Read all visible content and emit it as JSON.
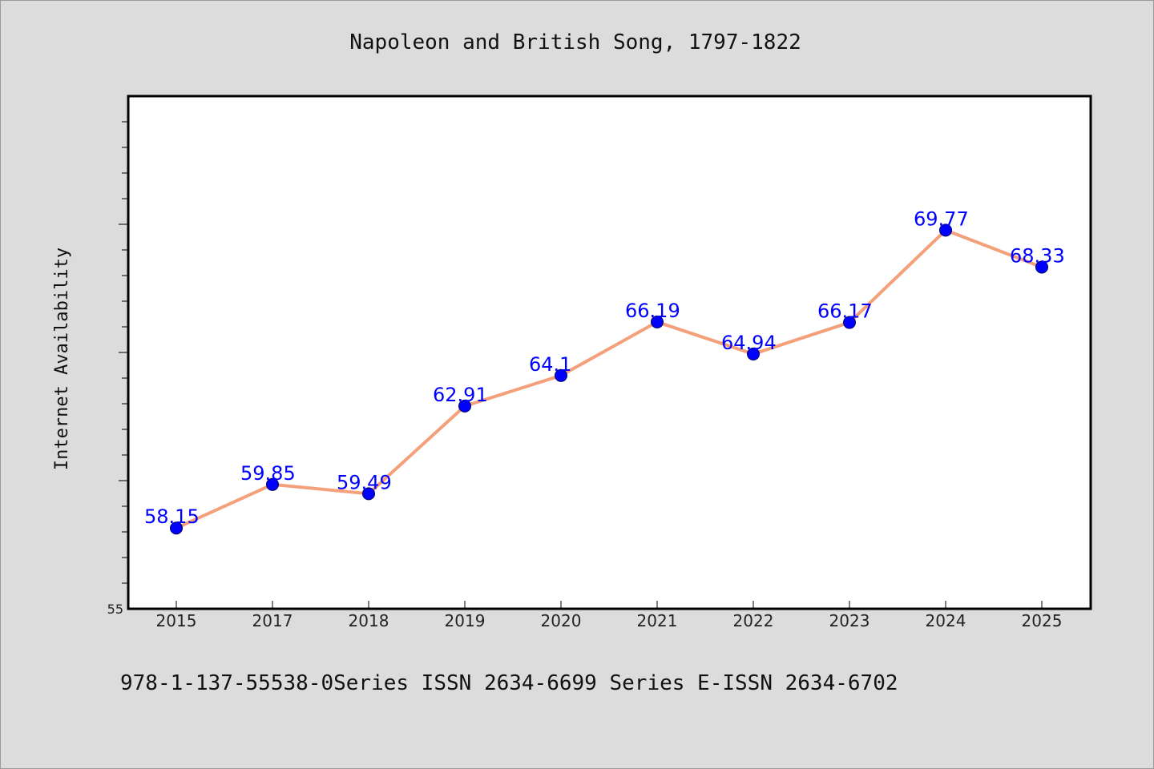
{
  "chart_data": {
    "type": "line",
    "title": "Napoleon and British Song, 1797-1822",
    "xlabel": "",
    "ylabel": "Internet Availability",
    "categories": [
      "2015",
      "2017",
      "2018",
      "2019",
      "2020",
      "2021",
      "2022",
      "2023",
      "2024",
      "2025"
    ],
    "values": [
      58.15,
      59.85,
      59.49,
      62.91,
      64.1,
      66.19,
      64.94,
      66.17,
      69.77,
      68.33
    ],
    "data_labels": [
      "58.15",
      "59.85",
      "59.49",
      "62.91",
      "64.1",
      "66.19",
      "64.94",
      "66.17",
      "69.77",
      "68.33"
    ],
    "y_tick_labels": [
      "55"
    ],
    "ylim": [
      55,
      75
    ],
    "grid": false,
    "legend": "none",
    "line_color": "#f4a07a",
    "marker_color": "#0000ff",
    "label_color": "#0000ff"
  },
  "footer": {
    "text": "978-1-137-55538-0Series ISSN 2634-6699 Series E-ISSN 2634-6702"
  }
}
